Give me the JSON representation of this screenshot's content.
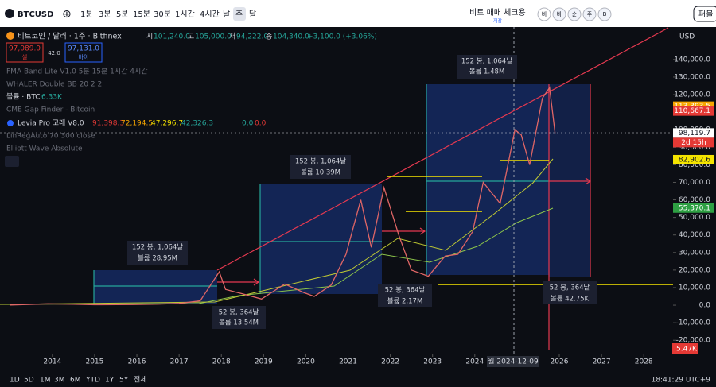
{
  "toolbar": {
    "symbol": "BTCUSD",
    "intervals": [
      "1분",
      "3분",
      "5분",
      "15분",
      "30분",
      "1시간",
      "4시간",
      "날",
      "주",
      "달"
    ],
    "layout_name": "비트 매매 체크용",
    "saved": "저장",
    "circle_buttons": [
      "비",
      "바",
      "순",
      "주",
      "B"
    ],
    "publish": "퍼블"
  },
  "legend": {
    "title": "비트코인 / 달러 · 1주 · Bitfinex",
    "ohlc": [
      {
        "key": "시",
        "value": "101,240.0"
      },
      {
        "key": "고",
        "value": "105,000.0"
      },
      {
        "key": "저",
        "value": "94,222.0"
      },
      {
        "key": "종",
        "value": "104,340.0"
      }
    ],
    "change": "+3,100.0 (+3.06%)",
    "sell_price": "97,089.0",
    "sell": "셀",
    "spread": "42.0",
    "buy_price": "97,131.0",
    "buy": "바이"
  },
  "indicators": {
    "fma": "FMA Band Lite V1.0 5분 15분 1시간 4시간",
    "whaler": "WHALER Double BB 20 2 2",
    "volume": "볼륨 · BTC",
    "volume_value": "6.33K",
    "cme": "CME Gap Finder - Bitcoin",
    "levia": "Levia Pro 고래 V8.0",
    "levia_values": [
      "91,398.3",
      "72,194.5",
      "47,296.7",
      "42,326.3",
      "0.0",
      "0.0"
    ],
    "linreg": "LinRegAuto 70 300 close",
    "elliott": "Elliott Wave Absolute"
  },
  "annotations": [
    {
      "bars": "152 봉, 1,064날",
      "volume": "볼륨 28.95M"
    },
    {
      "bars": "52 봉, 364날",
      "volume": "볼륨 13.54M"
    },
    {
      "bars": "152 봉, 1,064날",
      "volume": "볼륨 10.39M"
    },
    {
      "bars": "52 봉, 364날",
      "volume": "볼륨 2.17M"
    },
    {
      "bars": "152 봉, 1,064날",
      "volume": "볼륨 1.48M"
    },
    {
      "bars": "52 봉, 364날",
      "volume": "볼륨 42.75K"
    }
  ],
  "chart_data": {
    "type": "line",
    "color": "#e06666",
    "x": [
      2013.0,
      2013.9,
      2014.5,
      2015.0,
      2015.9,
      2016.5,
      2017.0,
      2017.5,
      2017.95,
      2018.1,
      2018.5,
      2018.95,
      2019.5,
      2019.95,
      2020.2,
      2020.6,
      2020.95,
      2021.3,
      2021.55,
      2021.85,
      2022.2,
      2022.5,
      2022.9,
      2023.3,
      2023.6,
      2023.95,
      2024.2,
      2024.6,
      2024.95,
      2025.1,
      2025.3,
      2025.6,
      2025.77,
      2025.9
    ],
    "values": [
      100,
      800,
      500,
      250,
      400,
      600,
      1000,
      2500,
      19000,
      9000,
      6500,
      3500,
      12000,
      7200,
      5000,
      11500,
      29000,
      60000,
      33000,
      67000,
      40000,
      20000,
      16500,
      28000,
      29000,
      42000,
      70000,
      58000,
      100000,
      97000,
      80000,
      118000,
      124000,
      98000
    ],
    "xlim": [
      2012.76,
      2028.58
    ],
    "xticks": [
      2014,
      2015,
      2016,
      2017,
      2018,
      2019,
      2020,
      2021,
      2022,
      2023,
      2024,
      2026,
      2027,
      2028
    ],
    "ylim": [
      -27600,
      149000
    ],
    "yticks": [
      {
        "value": 140000,
        "label": "140,000.0"
      },
      {
        "value": 130000,
        "label": "130,000.0"
      },
      {
        "value": 120000,
        "label": "120,000.0"
      },
      {
        "value": 110000,
        "label": "110,000.0"
      },
      {
        "value": 100000,
        "label": "100,000.0"
      },
      {
        "value": 90000,
        "label": "90,000.0"
      },
      {
        "value": 80000,
        "label": "80,000.0"
      },
      {
        "value": 70000,
        "label": "70,000.0"
      },
      {
        "value": 60000,
        "label": "60,000.0"
      },
      {
        "value": 50000,
        "label": "50,000.0"
      },
      {
        "value": 40000,
        "label": "40,000.0"
      },
      {
        "value": 30000,
        "label": "30,000.0"
      },
      {
        "value": 20000,
        "label": "20,000.0"
      },
      {
        "value": 10000,
        "label": "10,000.0"
      },
      {
        "value": 0,
        "label": "0.0"
      },
      {
        "value": -10000,
        "label": "-10,000.0"
      },
      {
        "value": -20000,
        "label": "-20,000.0"
      }
    ],
    "price_tags": [
      {
        "value": 113393.5,
        "label": "113,393.5",
        "color": "#f7a600"
      },
      {
        "value": 110667.1,
        "label": "110,667.1",
        "color": "#e53935"
      },
      {
        "value": 98119.7,
        "label": "98,119.7",
        "color": "#ffffff"
      },
      {
        "value": 82902.6,
        "label": "82,902.6",
        "color": "#f5e400"
      },
      {
        "value": 55370.1,
        "label": "55,370.1",
        "color": "#2ea043"
      }
    ],
    "countdown": "2d 15h",
    "volume_tag": "5.47K",
    "currency": "USD",
    "crosshair_label": "월 2024-12-09"
  },
  "bottom_bar": {
    "ranges": [
      "1D",
      "5D",
      "1M",
      "3M",
      "6M",
      "YTD",
      "1Y",
      "5Y",
      "전체"
    ],
    "clock": "18:41:29 UTC+9"
  }
}
